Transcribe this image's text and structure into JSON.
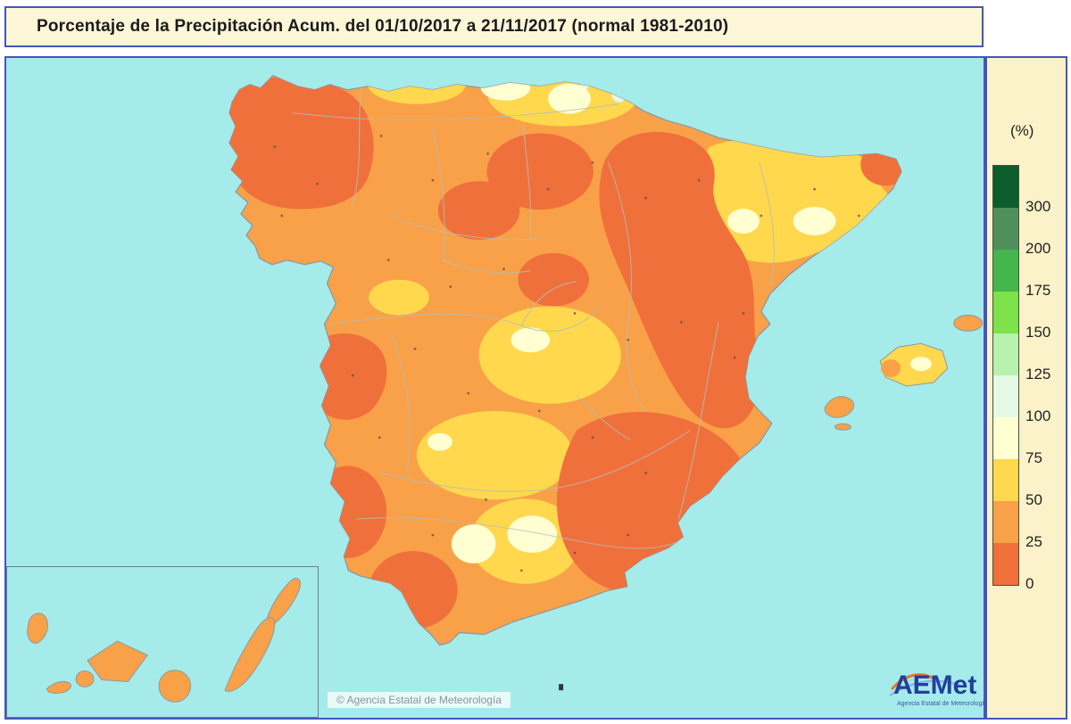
{
  "title": "Porcentaje de la Precipitación Acum. del 01/10/2017 a  21/11/2017  (normal 1981-2010)",
  "frame_colors": {
    "title_bg": "#fdf6d7",
    "legend_bg": "#fcf2c9",
    "sea": "#a5ebea"
  },
  "legend": {
    "unit_label": "(%)",
    "bands": [
      {
        "color": "#0b5e2b",
        "label": "300"
      },
      {
        "color": "#4e8f5c",
        "label": "200"
      },
      {
        "color": "#45b54e",
        "label": "175"
      },
      {
        "color": "#7ee24a",
        "label": "150"
      },
      {
        "color": "#b6f2ad",
        "label": "125"
      },
      {
        "color": "#e4f9e6",
        "label": "100"
      },
      {
        "color": "#ffffd2",
        "label": "75"
      },
      {
        "color": "#ffd84e",
        "label": "50"
      },
      {
        "color": "#f9a148",
        "label": "25"
      },
      {
        "color": "#f0703c",
        "label": "0"
      }
    ]
  },
  "map_colors": {
    "band_0_25": "#f0703c",
    "band_25_50": "#f9a148",
    "band_50_75": "#ffd84e",
    "band_75_100": "#ffffd2",
    "band_100_125": "#e4f9e6"
  },
  "footer": {
    "copyright": "© Agencia Estatal de Meteorología",
    "logo_text": "AEMet",
    "logo_subtext": "Agencia Estatal de Meteorología"
  }
}
